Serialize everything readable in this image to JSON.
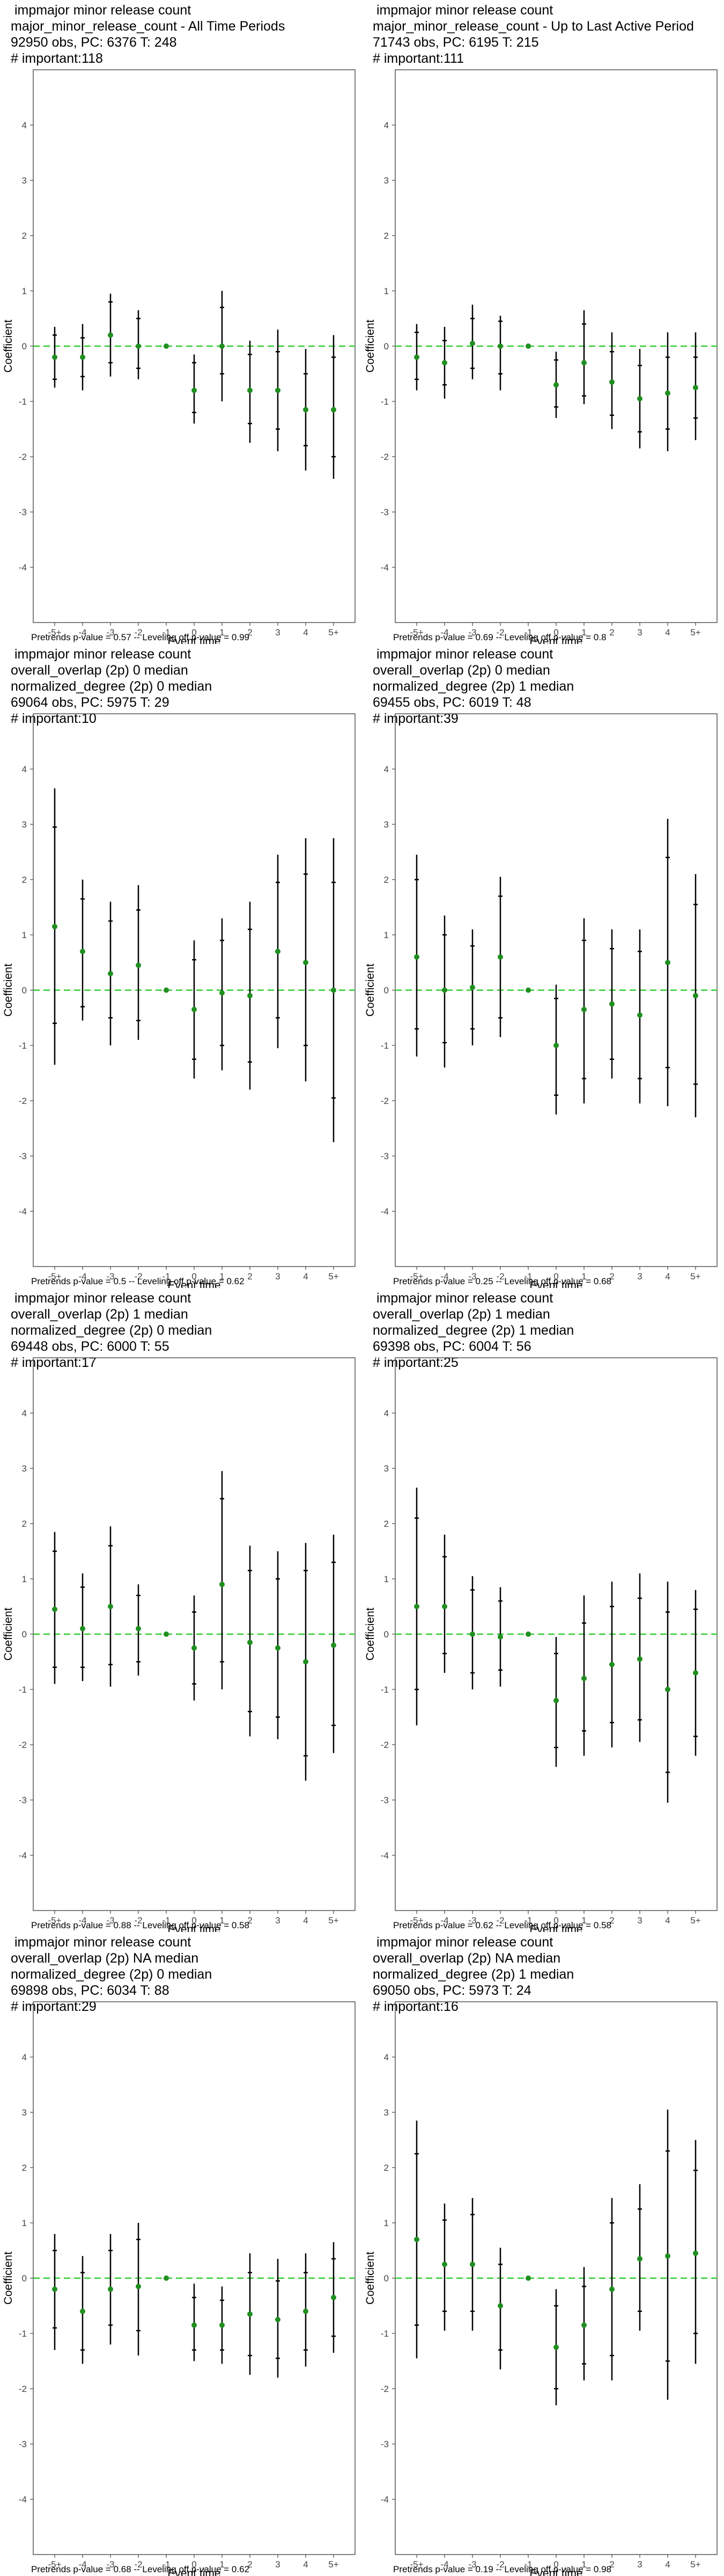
{
  "page": {
    "background": "#ffffff",
    "point_color": "#1f8f1f",
    "zero_line_color": "#33cc33"
  },
  "chart_data": [
    {
      "type": "scatter",
      "title_lines": [
        " impmajor minor release count",
        "major_minor_release_count - All Time Periods",
        "92950 obs, PC: 6376 T: 248",
        "# important:118"
      ],
      "xlabel": "Event time",
      "ylabel": "Coefficient",
      "categories": [
        "-5+",
        "-4",
        "-3",
        "-2",
        "-1",
        "0",
        "1",
        "2",
        "3",
        "4",
        "5+"
      ],
      "ylim": [
        -5,
        5
      ],
      "yticks": [
        -4,
        -3,
        -2,
        -1,
        0,
        1,
        2,
        3,
        4
      ],
      "points": [
        {
          "y": -0.2,
          "lo90": -0.6,
          "hi90": 0.2,
          "lo95": -0.75,
          "hi95": 0.35
        },
        {
          "y": -0.2,
          "lo90": -0.55,
          "hi90": 0.15,
          "lo95": -0.8,
          "hi95": 0.4
        },
        {
          "y": 0.2,
          "lo90": -0.3,
          "hi90": 0.8,
          "lo95": -0.55,
          "hi95": 0.95
        },
        {
          "y": 0.0,
          "lo90": -0.4,
          "hi90": 0.5,
          "lo95": -0.6,
          "hi95": 0.65
        },
        {
          "y": 0.0,
          "lo90": 0.0,
          "hi90": 0.0,
          "lo95": 0.0,
          "hi95": 0.0
        },
        {
          "y": -0.8,
          "lo90": -1.2,
          "hi90": -0.3,
          "lo95": -1.4,
          "hi95": -0.15
        },
        {
          "y": 0.0,
          "lo90": -0.5,
          "hi90": 0.7,
          "lo95": -1.0,
          "hi95": 1.0
        },
        {
          "y": -0.8,
          "lo90": -1.4,
          "hi90": -0.15,
          "lo95": -1.75,
          "hi95": 0.1
        },
        {
          "y": -0.8,
          "lo90": -1.5,
          "hi90": -0.1,
          "lo95": -1.9,
          "hi95": 0.3
        },
        {
          "y": -1.15,
          "lo90": -1.8,
          "hi90": -0.5,
          "lo95": -2.25,
          "hi95": -0.05
        },
        {
          "y": -1.15,
          "lo90": -2.0,
          "hi90": -0.2,
          "lo95": -2.4,
          "hi95": 0.2
        }
      ],
      "footer": "Pretrends p-value = 0.57 -- Leveling off p-value = 0.99"
    },
    {
      "type": "scatter",
      "title_lines": [
        " impmajor minor release count",
        "major_minor_release_count - Up to Last Active Period",
        "71743 obs, PC: 6195 T: 215",
        "# important:111"
      ],
      "xlabel": "Event time",
      "ylabel": "Coefficient",
      "categories": [
        "-5+",
        "-4",
        "-3",
        "-2",
        "-1",
        "0",
        "1",
        "2",
        "3",
        "4",
        "5+"
      ],
      "ylim": [
        -5,
        5
      ],
      "yticks": [
        -4,
        -3,
        -2,
        -1,
        0,
        1,
        2,
        3,
        4
      ],
      "points": [
        {
          "y": -0.2,
          "lo90": -0.6,
          "hi90": 0.25,
          "lo95": -0.8,
          "hi95": 0.4
        },
        {
          "y": -0.3,
          "lo90": -0.7,
          "hi90": 0.1,
          "lo95": -0.95,
          "hi95": 0.35
        },
        {
          "y": 0.05,
          "lo90": -0.4,
          "hi90": 0.5,
          "lo95": -0.6,
          "hi95": 0.75
        },
        {
          "y": 0.0,
          "lo90": -0.5,
          "hi90": 0.45,
          "lo95": -0.8,
          "hi95": 0.55
        },
        {
          "y": 0.0,
          "lo90": 0.0,
          "hi90": 0.0,
          "lo95": 0.0,
          "hi95": 0.0
        },
        {
          "y": -0.7,
          "lo90": -1.1,
          "hi90": -0.25,
          "lo95": -1.3,
          "hi95": -0.1
        },
        {
          "y": -0.3,
          "lo90": -0.9,
          "hi90": 0.4,
          "lo95": -1.05,
          "hi95": 0.65
        },
        {
          "y": -0.65,
          "lo90": -1.25,
          "hi90": -0.1,
          "lo95": -1.5,
          "hi95": 0.25
        },
        {
          "y": -0.95,
          "lo90": -1.55,
          "hi90": -0.35,
          "lo95": -1.85,
          "hi95": -0.05
        },
        {
          "y": -0.85,
          "lo90": -1.5,
          "hi90": -0.2,
          "lo95": -1.9,
          "hi95": 0.25
        },
        {
          "y": -0.75,
          "lo90": -1.3,
          "hi90": -0.2,
          "lo95": -1.7,
          "hi95": 0.25
        }
      ],
      "footer": "Pretrends p-value = 0.69 -- Leveling off p-value = 0.8"
    },
    {
      "type": "scatter",
      "title_lines": [
        " impmajor minor release count",
        "overall_overlap (2p) 0 median",
        "normalized_degree (2p) 0 median",
        "69064 obs, PC: 5975 T: 29",
        "# important:10"
      ],
      "xlabel": "Event time",
      "ylabel": "Coefficient",
      "categories": [
        "-5+",
        "-4",
        "-3",
        "-2",
        "-1",
        "0",
        "1",
        "2",
        "3",
        "4",
        "5+"
      ],
      "ylim": [
        -5,
        5
      ],
      "yticks": [
        -4,
        -3,
        -2,
        -1,
        0,
        1,
        2,
        3,
        4
      ],
      "points": [
        {
          "y": 1.15,
          "lo90": -0.6,
          "hi90": 2.95,
          "lo95": -1.35,
          "hi95": 3.65
        },
        {
          "y": 0.7,
          "lo90": -0.3,
          "hi90": 1.65,
          "lo95": -0.55,
          "hi95": 2.0
        },
        {
          "y": 0.3,
          "lo90": -0.5,
          "hi90": 1.25,
          "lo95": -1.0,
          "hi95": 1.6
        },
        {
          "y": 0.45,
          "lo90": -0.55,
          "hi90": 1.45,
          "lo95": -0.9,
          "hi95": 1.9
        },
        {
          "y": 0.0,
          "lo90": 0.0,
          "hi90": 0.0,
          "lo95": 0.0,
          "hi95": 0.0
        },
        {
          "y": -0.35,
          "lo90": -1.25,
          "hi90": 0.55,
          "lo95": -1.6,
          "hi95": 0.9
        },
        {
          "y": -0.05,
          "lo90": -1.0,
          "hi90": 0.9,
          "lo95": -1.45,
          "hi95": 1.3
        },
        {
          "y": -0.1,
          "lo90": -1.3,
          "hi90": 1.1,
          "lo95": -1.8,
          "hi95": 1.6
        },
        {
          "y": 0.7,
          "lo90": -0.5,
          "hi90": 1.95,
          "lo95": -1.05,
          "hi95": 2.45
        },
        {
          "y": 0.5,
          "lo90": -1.0,
          "hi90": 2.1,
          "lo95": -1.65,
          "hi95": 2.75
        },
        {
          "y": 0.0,
          "lo90": -1.95,
          "hi90": 1.95,
          "lo95": -2.75,
          "hi95": 2.75
        }
      ],
      "footer": "Pretrends p-value = 0.5 -- Leveling off p-value = 0.62"
    },
    {
      "type": "scatter",
      "title_lines": [
        " impmajor minor release count",
        "overall_overlap (2p) 0 median",
        "normalized_degree (2p) 1 median",
        "69455 obs, PC: 6019 T: 48",
        "# important:39"
      ],
      "xlabel": "Event time",
      "ylabel": "Coefficient",
      "categories": [
        "-5+",
        "-4",
        "-3",
        "-2",
        "-1",
        "0",
        "1",
        "2",
        "3",
        "4",
        "5+"
      ],
      "ylim": [
        -5,
        5
      ],
      "yticks": [
        -4,
        -3,
        -2,
        -1,
        0,
        1,
        2,
        3,
        4
      ],
      "points": [
        {
          "y": 0.6,
          "lo90": -0.7,
          "hi90": 2.0,
          "lo95": -1.2,
          "hi95": 2.45
        },
        {
          "y": 0.0,
          "lo90": -0.95,
          "hi90": 1.0,
          "lo95": -1.4,
          "hi95": 1.35
        },
        {
          "y": 0.05,
          "lo90": -0.7,
          "hi90": 0.8,
          "lo95": -1.0,
          "hi95": 1.1
        },
        {
          "y": 0.6,
          "lo90": -0.5,
          "hi90": 1.7,
          "lo95": -0.85,
          "hi95": 2.05
        },
        {
          "y": 0.0,
          "lo90": 0.0,
          "hi90": 0.0,
          "lo95": 0.0,
          "hi95": 0.0
        },
        {
          "y": -1.0,
          "lo90": -1.9,
          "hi90": -0.15,
          "lo95": -2.25,
          "hi95": 0.1
        },
        {
          "y": -0.35,
          "lo90": -1.6,
          "hi90": 0.9,
          "lo95": -2.05,
          "hi95": 1.3
        },
        {
          "y": -0.25,
          "lo90": -1.25,
          "hi90": 0.75,
          "lo95": -1.6,
          "hi95": 1.1
        },
        {
          "y": -0.45,
          "lo90": -1.6,
          "hi90": 0.7,
          "lo95": -2.05,
          "hi95": 1.1
        },
        {
          "y": 0.5,
          "lo90": -1.4,
          "hi90": 2.4,
          "lo95": -2.1,
          "hi95": 3.1
        },
        {
          "y": -0.1,
          "lo90": -1.7,
          "hi90": 1.55,
          "lo95": -2.3,
          "hi95": 2.1
        }
      ],
      "footer": "Pretrends p-value = 0.25 -- Leveling off p-value = 0.68"
    },
    {
      "type": "scatter",
      "title_lines": [
        " impmajor minor release count",
        "overall_overlap (2p) 1 median",
        "normalized_degree (2p) 0 median",
        "69448 obs, PC: 6000 T: 55",
        "# important:17"
      ],
      "xlabel": "Event time",
      "ylabel": "Coefficient",
      "categories": [
        "-5+",
        "-4",
        "-3",
        "-2",
        "-1",
        "0",
        "1",
        "2",
        "3",
        "4",
        "5+"
      ],
      "ylim": [
        -5,
        5
      ],
      "yticks": [
        -4,
        -3,
        -2,
        -1,
        0,
        1,
        2,
        3,
        4
      ],
      "points": [
        {
          "y": 0.45,
          "lo90": -0.6,
          "hi90": 1.5,
          "lo95": -0.9,
          "hi95": 1.85
        },
        {
          "y": 0.1,
          "lo90": -0.6,
          "hi90": 0.85,
          "lo95": -0.85,
          "hi95": 1.1
        },
        {
          "y": 0.5,
          "lo90": -0.55,
          "hi90": 1.6,
          "lo95": -0.95,
          "hi95": 1.95
        },
        {
          "y": 0.1,
          "lo90": -0.5,
          "hi90": 0.7,
          "lo95": -0.75,
          "hi95": 0.9
        },
        {
          "y": 0.0,
          "lo90": 0.0,
          "hi90": 0.0,
          "lo95": 0.0,
          "hi95": 0.0
        },
        {
          "y": -0.25,
          "lo90": -0.9,
          "hi90": 0.4,
          "lo95": -1.2,
          "hi95": 0.7
        },
        {
          "y": 0.9,
          "lo90": -0.5,
          "hi90": 2.45,
          "lo95": -1.0,
          "hi95": 2.95
        },
        {
          "y": -0.15,
          "lo90": -1.4,
          "hi90": 1.15,
          "lo95": -1.85,
          "hi95": 1.6
        },
        {
          "y": -0.25,
          "lo90": -1.5,
          "hi90": 1.0,
          "lo95": -1.9,
          "hi95": 1.5
        },
        {
          "y": -0.5,
          "lo90": -2.2,
          "hi90": 1.15,
          "lo95": -2.65,
          "hi95": 1.65
        },
        {
          "y": -0.2,
          "lo90": -1.65,
          "hi90": 1.3,
          "lo95": -2.15,
          "hi95": 1.8
        }
      ],
      "footer": "Pretrends p-value = 0.88 -- Leveling off p-value = 0.58"
    },
    {
      "type": "scatter",
      "title_lines": [
        " impmajor minor release count",
        "overall_overlap (2p) 1 median",
        "normalized_degree (2p) 1 median",
        "69398 obs, PC: 6004 T: 56",
        "# important:25"
      ],
      "xlabel": "Event time",
      "ylabel": "Coefficient",
      "categories": [
        "-5+",
        "-4",
        "-3",
        "-2",
        "-1",
        "0",
        "1",
        "2",
        "3",
        "4",
        "5+"
      ],
      "ylim": [
        -5,
        5
      ],
      "yticks": [
        -4,
        -3,
        -2,
        -1,
        0,
        1,
        2,
        3,
        4
      ],
      "points": [
        {
          "y": 0.5,
          "lo90": -1.0,
          "hi90": 2.1,
          "lo95": -1.65,
          "hi95": 2.65
        },
        {
          "y": 0.5,
          "lo90": -0.35,
          "hi90": 1.4,
          "lo95": -0.7,
          "hi95": 1.8
        },
        {
          "y": 0.0,
          "lo90": -0.7,
          "hi90": 0.8,
          "lo95": -1.0,
          "hi95": 1.05
        },
        {
          "y": -0.05,
          "lo90": -0.65,
          "hi90": 0.6,
          "lo95": -0.95,
          "hi95": 0.85
        },
        {
          "y": 0.0,
          "lo90": 0.0,
          "hi90": 0.0,
          "lo95": 0.0,
          "hi95": 0.0
        },
        {
          "y": -1.2,
          "lo90": -2.05,
          "hi90": -0.35,
          "lo95": -2.4,
          "hi95": -0.05
        },
        {
          "y": -0.8,
          "lo90": -1.75,
          "hi90": 0.2,
          "lo95": -2.2,
          "hi95": 0.7
        },
        {
          "y": -0.55,
          "lo90": -1.6,
          "hi90": 0.5,
          "lo95": -2.05,
          "hi95": 0.95
        },
        {
          "y": -0.45,
          "lo90": -1.55,
          "hi90": 0.65,
          "lo95": -1.95,
          "hi95": 1.1
        },
        {
          "y": -1.0,
          "lo90": -2.5,
          "hi90": 0.4,
          "lo95": -3.05,
          "hi95": 0.95
        },
        {
          "y": -0.7,
          "lo90": -1.85,
          "hi90": 0.45,
          "lo95": -2.2,
          "hi95": 0.8
        }
      ],
      "footer": "Pretrends p-value = 0.62 -- Leveling off p-value = 0.58"
    },
    {
      "type": "scatter",
      "title_lines": [
        " impmajor minor release count",
        "overall_overlap (2p) NA median",
        "normalized_degree (2p) 0 median",
        "69898 obs, PC: 6034 T: 88",
        "# important:29"
      ],
      "xlabel": "Event time",
      "ylabel": "Coefficient",
      "categories": [
        "-5+",
        "-4",
        "-3",
        "-2",
        "-1",
        "0",
        "1",
        "2",
        "3",
        "4",
        "5+"
      ],
      "ylim": [
        -5,
        5
      ],
      "yticks": [
        -4,
        -3,
        -2,
        -1,
        0,
        1,
        2,
        3,
        4
      ],
      "points": [
        {
          "y": -0.2,
          "lo90": -0.9,
          "hi90": 0.5,
          "lo95": -1.3,
          "hi95": 0.8
        },
        {
          "y": -0.6,
          "lo90": -1.3,
          "hi90": 0.1,
          "lo95": -1.55,
          "hi95": 0.4
        },
        {
          "y": -0.2,
          "lo90": -0.85,
          "hi90": 0.5,
          "lo95": -1.2,
          "hi95": 0.8
        },
        {
          "y": -0.15,
          "lo90": -0.95,
          "hi90": 0.7,
          "lo95": -1.4,
          "hi95": 1.0
        },
        {
          "y": 0.0,
          "lo90": 0.0,
          "hi90": 0.0,
          "lo95": 0.0,
          "hi95": 0.0
        },
        {
          "y": -0.85,
          "lo90": -1.3,
          "hi90": -0.35,
          "lo95": -1.5,
          "hi95": -0.1
        },
        {
          "y": -0.85,
          "lo90": -1.3,
          "hi90": -0.4,
          "lo95": -1.55,
          "hi95": -0.15
        },
        {
          "y": -0.65,
          "lo90": -1.4,
          "hi90": 0.1,
          "lo95": -1.75,
          "hi95": 0.45
        },
        {
          "y": -0.75,
          "lo90": -1.45,
          "hi90": -0.05,
          "lo95": -1.8,
          "hi95": 0.35
        },
        {
          "y": -0.6,
          "lo90": -1.3,
          "hi90": 0.1,
          "lo95": -1.6,
          "hi95": 0.45
        },
        {
          "y": -0.35,
          "lo90": -1.05,
          "hi90": 0.35,
          "lo95": -1.35,
          "hi95": 0.65
        }
      ],
      "footer": "Pretrends p-value = 0.68 -- Leveling off p-value = 0.62"
    },
    {
      "type": "scatter",
      "title_lines": [
        " impmajor minor release count",
        "overall_overlap (2p) NA median",
        "normalized_degree (2p) 1 median",
        "69050 obs, PC: 5973 T: 24",
        "# important:16"
      ],
      "xlabel": "Event time",
      "ylabel": "Coefficient",
      "categories": [
        "-5+",
        "-4",
        "-3",
        "-2",
        "-1",
        "0",
        "1",
        "2",
        "3",
        "4",
        "5+"
      ],
      "ylim": [
        -5,
        5
      ],
      "yticks": [
        -4,
        -3,
        -2,
        -1,
        0,
        1,
        2,
        3,
        4
      ],
      "points": [
        {
          "y": 0.7,
          "lo90": -0.85,
          "hi90": 2.25,
          "lo95": -1.45,
          "hi95": 2.85
        },
        {
          "y": 0.25,
          "lo90": -0.6,
          "hi90": 1.05,
          "lo95": -0.95,
          "hi95": 1.35
        },
        {
          "y": 0.25,
          "lo90": -0.6,
          "hi90": 1.15,
          "lo95": -0.95,
          "hi95": 1.45
        },
        {
          "y": -0.5,
          "lo90": -1.3,
          "hi90": 0.25,
          "lo95": -1.65,
          "hi95": 0.55
        },
        {
          "y": 0.0,
          "lo90": 0.0,
          "hi90": 0.0,
          "lo95": 0.0,
          "hi95": 0.0
        },
        {
          "y": -1.25,
          "lo90": -2.0,
          "hi90": -0.5,
          "lo95": -2.3,
          "hi95": -0.2
        },
        {
          "y": -0.85,
          "lo90": -1.55,
          "hi90": -0.15,
          "lo95": -1.85,
          "hi95": 0.2
        },
        {
          "y": -0.2,
          "lo90": -1.4,
          "hi90": 1.0,
          "lo95": -1.85,
          "hi95": 1.45
        },
        {
          "y": 0.35,
          "lo90": -0.6,
          "hi90": 1.25,
          "lo95": -0.95,
          "hi95": 1.7
        },
        {
          "y": 0.4,
          "lo90": -1.5,
          "hi90": 2.3,
          "lo95": -2.2,
          "hi95": 3.05
        },
        {
          "y": 0.45,
          "lo90": -1.0,
          "hi90": 1.95,
          "lo95": -1.55,
          "hi95": 2.5
        }
      ],
      "footer": "Pretrends p-value = 0.19 -- Leveling off p-value = 0.98"
    }
  ]
}
